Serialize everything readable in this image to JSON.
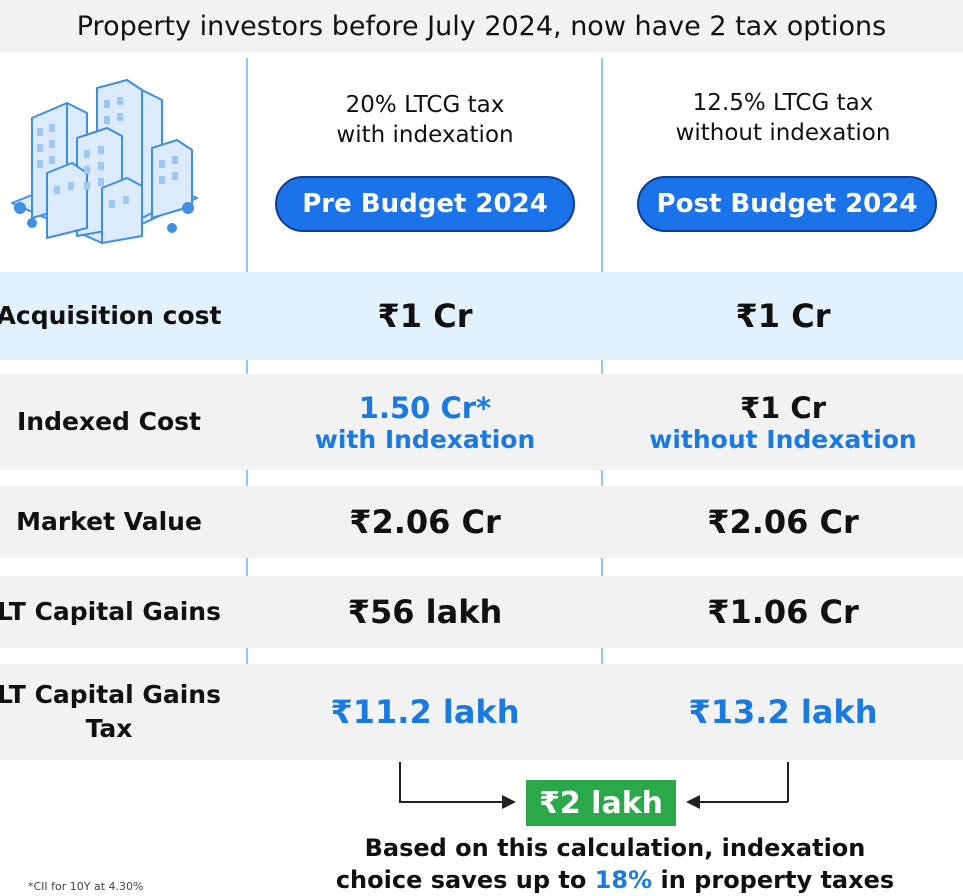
{
  "title": "Property investors before July 2024, now have 2 tax options",
  "columns": [
    {
      "heading_line1": "20% LTCG tax",
      "heading_line2": "with indexation",
      "pill": "Pre Budget 2024"
    },
    {
      "heading_line1": "12.5% LTCG tax",
      "heading_line2": "without indexation",
      "pill": "Post Budget 2024"
    }
  ],
  "rows": [
    {
      "label": "Acquisition cost",
      "pre": "₹1 Cr",
      "post": "₹1 Cr"
    },
    {
      "label": "Indexed Cost",
      "pre": "1.50 Cr*",
      "pre_sub": "with Indexation",
      "post": "₹1 Cr",
      "post_sub": "without Indexation"
    },
    {
      "label": "Market Value",
      "pre": "₹2.06 Cr",
      "post": "₹2.06 Cr"
    },
    {
      "label": "LT Capital Gains",
      "pre": "₹56 lakh",
      "post": "₹1.06 Cr"
    },
    {
      "label": "LT Capital Gains Tax",
      "pre": "₹11.2 lakh",
      "post": "₹13.2 lakh"
    }
  ],
  "result": "₹2 lakh",
  "note": {
    "line1": "Based on this calculation, indexation",
    "line2_before": "choice saves up to ",
    "line2_pct": "18%",
    "line2_after": " in property taxes"
  },
  "footnote": "*CII for 10Y at 4.30%",
  "colors": {
    "accent": "#1a73e8",
    "highlight_row": "#e3f1fc",
    "row_alt": "#f2f2f2",
    "result": "#2aa84a"
  }
}
